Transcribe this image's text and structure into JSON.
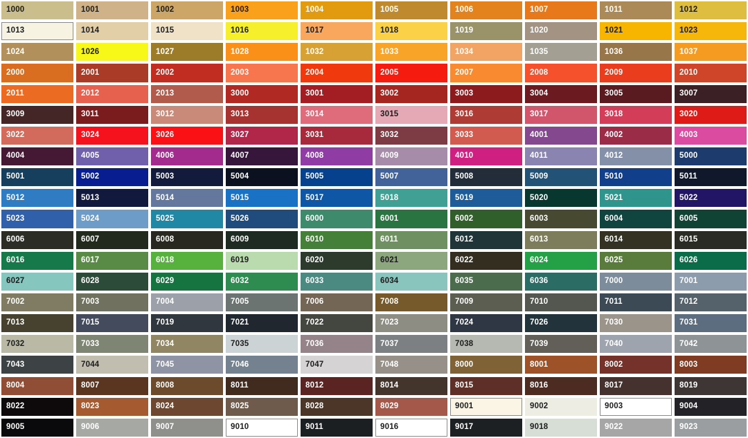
{
  "page": {
    "background": "#ffffff",
    "title": "RAL color chart"
  },
  "palette": {
    "label_dark": "#1d1d1d",
    "label_light": "#ffffff",
    "outline_color": "#8a8a8a",
    "swatches": [
      {
        "code": "1000",
        "color": "#C9BE8C",
        "text": "dark"
      },
      {
        "code": "1001",
        "color": "#CFB287",
        "text": "dark"
      },
      {
        "code": "1002",
        "color": "#CBA666",
        "text": "dark"
      },
      {
        "code": "1003",
        "color": "#F9A11B",
        "text": "dark"
      },
      {
        "code": "1004",
        "color": "#E29A0E",
        "text": "light"
      },
      {
        "code": "1005",
        "color": "#BE8A2D",
        "text": "light"
      },
      {
        "code": "1006",
        "color": "#E3831E",
        "text": "light"
      },
      {
        "code": "1007",
        "color": "#E8791B",
        "text": "light"
      },
      {
        "code": "1011",
        "color": "#AC8A58",
        "text": "light"
      },
      {
        "code": "1012",
        "color": "#DDBE3E",
        "text": "dark"
      },
      {
        "code": "1013",
        "color": "#F7F3E3",
        "text": "dark",
        "outlined": true
      },
      {
        "code": "1014",
        "color": "#E2CFA7",
        "text": "dark"
      },
      {
        "code": "1015",
        "color": "#EFE2C6",
        "text": "dark"
      },
      {
        "code": "1016",
        "color": "#F5F02B",
        "text": "dark"
      },
      {
        "code": "1017",
        "color": "#F9A75C",
        "text": "dark"
      },
      {
        "code": "1018",
        "color": "#FBD247",
        "text": "dark"
      },
      {
        "code": "1019",
        "color": "#9A9268",
        "text": "light"
      },
      {
        "code": "1020",
        "color": "#A39382",
        "text": "light"
      },
      {
        "code": "1021",
        "color": "#F7B500",
        "text": "dark"
      },
      {
        "code": "1023",
        "color": "#F7B60A",
        "text": "dark"
      },
      {
        "code": "1024",
        "color": "#B1905B",
        "text": "light"
      },
      {
        "code": "1026",
        "color": "#F7F718",
        "text": "dark"
      },
      {
        "code": "1027",
        "color": "#9C7C28",
        "text": "light"
      },
      {
        "code": "1028",
        "color": "#FB9019",
        "text": "light"
      },
      {
        "code": "1032",
        "color": "#D8A133",
        "text": "light"
      },
      {
        "code": "1033",
        "color": "#F8A428",
        "text": "light"
      },
      {
        "code": "1034",
        "color": "#F2A465",
        "text": "light"
      },
      {
        "code": "1035",
        "color": "#A39F93",
        "text": "light"
      },
      {
        "code": "1036",
        "color": "#97764A",
        "text": "light"
      },
      {
        "code": "1037",
        "color": "#F59B22",
        "text": "light"
      },
      {
        "code": "2000",
        "color": "#DA6E20",
        "text": "light"
      },
      {
        "code": "2001",
        "color": "#A93B27",
        "text": "light"
      },
      {
        "code": "2002",
        "color": "#C12D20",
        "text": "light"
      },
      {
        "code": "2003",
        "color": "#F8764D",
        "text": "light"
      },
      {
        "code": "2004",
        "color": "#F03A0E",
        "text": "light"
      },
      {
        "code": "2005",
        "color": "#F51C0F",
        "text": "light"
      },
      {
        "code": "2007",
        "color": "#FA8A2F",
        "text": "light"
      },
      {
        "code": "2008",
        "color": "#F4512C",
        "text": "light"
      },
      {
        "code": "2009",
        "color": "#EA3D1D",
        "text": "light"
      },
      {
        "code": "2010",
        "color": "#CE4529",
        "text": "light"
      },
      {
        "code": "2011",
        "color": "#EC6B22",
        "text": "light"
      },
      {
        "code": "2012",
        "color": "#E7614F",
        "text": "light"
      },
      {
        "code": "2013",
        "color": "#B05B4B",
        "text": "light"
      },
      {
        "code": "3000",
        "color": "#B02A23",
        "text": "light"
      },
      {
        "code": "3001",
        "color": "#A21E22",
        "text": "light"
      },
      {
        "code": "3002",
        "color": "#A52521",
        "text": "light"
      },
      {
        "code": "3003",
        "color": "#8C1B1E",
        "text": "light"
      },
      {
        "code": "3004",
        "color": "#6B1A20",
        "text": "light"
      },
      {
        "code": "3005",
        "color": "#591A20",
        "text": "light"
      },
      {
        "code": "3007",
        "color": "#3B2025",
        "text": "light"
      },
      {
        "code": "3009",
        "color": "#442627",
        "text": "light"
      },
      {
        "code": "3011",
        "color": "#7A1B1E",
        "text": "light"
      },
      {
        "code": "3012",
        "color": "#C98A79",
        "text": "light"
      },
      {
        "code": "3013",
        "color": "#A63330",
        "text": "light"
      },
      {
        "code": "3014",
        "color": "#DE6C7B",
        "text": "light"
      },
      {
        "code": "3015",
        "color": "#E5A9B5",
        "text": "dark"
      },
      {
        "code": "3016",
        "color": "#AE3B34",
        "text": "light"
      },
      {
        "code": "3017",
        "color": "#D2566B",
        "text": "light"
      },
      {
        "code": "3018",
        "color": "#D43D58",
        "text": "light"
      },
      {
        "code": "3020",
        "color": "#DE1B16",
        "text": "light"
      },
      {
        "code": "3022",
        "color": "#D26B5C",
        "text": "light"
      },
      {
        "code": "3024",
        "color": "#F6121C",
        "text": "light"
      },
      {
        "code": "3026",
        "color": "#F91116",
        "text": "light"
      },
      {
        "code": "3027",
        "color": "#B0274A",
        "text": "light"
      },
      {
        "code": "3031",
        "color": "#A62A3B",
        "text": "light"
      },
      {
        "code": "3032",
        "color": "#7D3B43",
        "text": "light"
      },
      {
        "code": "3033",
        "color": "#D05B4E",
        "text": "light"
      },
      {
        "code": "4001",
        "color": "#84488E",
        "text": "light"
      },
      {
        "code": "4002",
        "color": "#9A2C48",
        "text": "light"
      },
      {
        "code": "4003",
        "color": "#DB4BA0",
        "text": "light"
      },
      {
        "code": "4004",
        "color": "#451833",
        "text": "light"
      },
      {
        "code": "4005",
        "color": "#7060AC",
        "text": "light"
      },
      {
        "code": "4006",
        "color": "#A22B8D",
        "text": "light"
      },
      {
        "code": "4007",
        "color": "#36173B",
        "text": "light"
      },
      {
        "code": "4008",
        "color": "#8F3DA5",
        "text": "light"
      },
      {
        "code": "4009",
        "color": "#A68CA8",
        "text": "light"
      },
      {
        "code": "4010",
        "color": "#CF2082",
        "text": "light"
      },
      {
        "code": "4011",
        "color": "#8A85B0",
        "text": "light"
      },
      {
        "code": "4012",
        "color": "#8490A8",
        "text": "light"
      },
      {
        "code": "5000",
        "color": "#1E3B6E",
        "text": "light"
      },
      {
        "code": "5001",
        "color": "#153F5C",
        "text": "light"
      },
      {
        "code": "5002",
        "color": "#081E90",
        "text": "light"
      },
      {
        "code": "5003",
        "color": "#121B3C",
        "text": "light"
      },
      {
        "code": "5004",
        "color": "#0B111E",
        "text": "light"
      },
      {
        "code": "5005",
        "color": "#06418D",
        "text": "light"
      },
      {
        "code": "5007",
        "color": "#41639A",
        "text": "light"
      },
      {
        "code": "5008",
        "color": "#232D39",
        "text": "light"
      },
      {
        "code": "5009",
        "color": "#225276",
        "text": "light"
      },
      {
        "code": "5010",
        "color": "#123F8A",
        "text": "light"
      },
      {
        "code": "5011",
        "color": "#10192B",
        "text": "light"
      },
      {
        "code": "5012",
        "color": "#2F7CC3",
        "text": "light"
      },
      {
        "code": "5013",
        "color": "#11193D",
        "text": "light"
      },
      {
        "code": "5014",
        "color": "#64789E",
        "text": "light"
      },
      {
        "code": "5015",
        "color": "#1A72C4",
        "text": "light"
      },
      {
        "code": "5017",
        "color": "#0E56A6",
        "text": "light"
      },
      {
        "code": "5018",
        "color": "#3FA093",
        "text": "light"
      },
      {
        "code": "5019",
        "color": "#1D5B99",
        "text": "light"
      },
      {
        "code": "5020",
        "color": "#07372F",
        "text": "light"
      },
      {
        "code": "5021",
        "color": "#2F948B",
        "text": "light"
      },
      {
        "code": "5022",
        "color": "#221566",
        "text": "light"
      },
      {
        "code": "5023",
        "color": "#3060A9",
        "text": "light"
      },
      {
        "code": "5024",
        "color": "#6D9CC9",
        "text": "light"
      },
      {
        "code": "5025",
        "color": "#2087A5",
        "text": "light"
      },
      {
        "code": "5026",
        "color": "#1F4C7C",
        "text": "light"
      },
      {
        "code": "6000",
        "color": "#3D8A6C",
        "text": "light"
      },
      {
        "code": "6001",
        "color": "#2A7441",
        "text": "light"
      },
      {
        "code": "6002",
        "color": "#315F2B",
        "text": "light"
      },
      {
        "code": "6003",
        "color": "#474A31",
        "text": "light"
      },
      {
        "code": "6004",
        "color": "#10443F",
        "text": "light"
      },
      {
        "code": "6005",
        "color": "#114335",
        "text": "light"
      },
      {
        "code": "6006",
        "color": "#2C2E26",
        "text": "light"
      },
      {
        "code": "6007",
        "color": "#222A1D",
        "text": "light"
      },
      {
        "code": "6008",
        "color": "#282720",
        "text": "light"
      },
      {
        "code": "6009",
        "color": "#1E2B22",
        "text": "light"
      },
      {
        "code": "6010",
        "color": "#448037",
        "text": "light"
      },
      {
        "code": "6011",
        "color": "#6F9162",
        "text": "light"
      },
      {
        "code": "6012",
        "color": "#203537",
        "text": "light"
      },
      {
        "code": "6013",
        "color": "#7D7C5B",
        "text": "light"
      },
      {
        "code": "6014",
        "color": "#343323",
        "text": "light"
      },
      {
        "code": "6015",
        "color": "#292B24",
        "text": "light"
      },
      {
        "code": "6016",
        "color": "#16794A",
        "text": "light"
      },
      {
        "code": "6017",
        "color": "#598B46",
        "text": "light"
      },
      {
        "code": "6018",
        "color": "#57B13D",
        "text": "light"
      },
      {
        "code": "6019",
        "color": "#BADBAE",
        "text": "dark"
      },
      {
        "code": "6020",
        "color": "#2D3B2C",
        "text": "light"
      },
      {
        "code": "6021",
        "color": "#8CA67E",
        "text": "dark"
      },
      {
        "code": "6022",
        "color": "#332E20",
        "text": "light"
      },
      {
        "code": "6024",
        "color": "#24A147",
        "text": "light"
      },
      {
        "code": "6025",
        "color": "#597C3C",
        "text": "light"
      },
      {
        "code": "6026",
        "color": "#0B6C49",
        "text": "light"
      },
      {
        "code": "6027",
        "color": "#85C7BF",
        "text": "dark"
      },
      {
        "code": "6028",
        "color": "#2D4B39",
        "text": "light"
      },
      {
        "code": "6029",
        "color": "#167440",
        "text": "light"
      },
      {
        "code": "6032",
        "color": "#2F8C50",
        "text": "light"
      },
      {
        "code": "6033",
        "color": "#4A8A81",
        "text": "light"
      },
      {
        "code": "6034",
        "color": "#89C4BD",
        "text": "dark"
      },
      {
        "code": "6035",
        "color": "#4B6C4D",
        "text": "light"
      },
      {
        "code": "6036",
        "color": "#2B6C64",
        "text": "light"
      },
      {
        "code": "7000",
        "color": "#7D8C9A",
        "text": "light"
      },
      {
        "code": "7001",
        "color": "#8D9CAC",
        "text": "light"
      },
      {
        "code": "7002",
        "color": "#807C64",
        "text": "light"
      },
      {
        "code": "7003",
        "color": "#70725F",
        "text": "light"
      },
      {
        "code": "7004",
        "color": "#9CA1A9",
        "text": "light"
      },
      {
        "code": "7005",
        "color": "#6C7471",
        "text": "light"
      },
      {
        "code": "7006",
        "color": "#746655",
        "text": "light"
      },
      {
        "code": "7008",
        "color": "#765A2B",
        "text": "light"
      },
      {
        "code": "7009",
        "color": "#5B5E51",
        "text": "light"
      },
      {
        "code": "7010",
        "color": "#545750",
        "text": "light"
      },
      {
        "code": "7011",
        "color": "#3C4A56",
        "text": "light"
      },
      {
        "code": "7012",
        "color": "#56626B",
        "text": "light"
      },
      {
        "code": "7013",
        "color": "#46422F",
        "text": "light"
      },
      {
        "code": "7015",
        "color": "#434B5C",
        "text": "light"
      },
      {
        "code": "7019",
        "color": "#31373E",
        "text": "light"
      },
      {
        "code": "7021",
        "color": "#20272E",
        "text": "light"
      },
      {
        "code": "7022",
        "color": "#444640",
        "text": "light"
      },
      {
        "code": "7023",
        "color": "#8D8D83",
        "text": "light"
      },
      {
        "code": "7024",
        "color": "#2F3744",
        "text": "light"
      },
      {
        "code": "7026",
        "color": "#22333C",
        "text": "light"
      },
      {
        "code": "7030",
        "color": "#9A948A",
        "text": "light"
      },
      {
        "code": "7031",
        "color": "#5B6D7F",
        "text": "light"
      },
      {
        "code": "7032",
        "color": "#B9B9A6",
        "text": "dark"
      },
      {
        "code": "7033",
        "color": "#7E8572",
        "text": "light"
      },
      {
        "code": "7034",
        "color": "#908663",
        "text": "light"
      },
      {
        "code": "7035",
        "color": "#CCD3D5",
        "text": "dark"
      },
      {
        "code": "7036",
        "color": "#948389",
        "text": "light"
      },
      {
        "code": "7037",
        "color": "#7C8083",
        "text": "light"
      },
      {
        "code": "7038",
        "color": "#B5B9B1",
        "text": "dark"
      },
      {
        "code": "7039",
        "color": "#625F59",
        "text": "light"
      },
      {
        "code": "7040",
        "color": "#9EA4AE",
        "text": "light"
      },
      {
        "code": "7042",
        "color": "#8E9396",
        "text": "light"
      },
      {
        "code": "7043",
        "color": "#3D4345",
        "text": "light"
      },
      {
        "code": "7044",
        "color": "#C1BEB0",
        "text": "dark"
      },
      {
        "code": "7045",
        "color": "#8E94A4",
        "text": "light"
      },
      {
        "code": "7046",
        "color": "#74818E",
        "text": "light"
      },
      {
        "code": "7047",
        "color": "#D6D3D5",
        "text": "dark"
      },
      {
        "code": "7048",
        "color": "#979088",
        "text": "light"
      },
      {
        "code": "8000",
        "color": "#7F6336",
        "text": "light"
      },
      {
        "code": "8001",
        "color": "#9D5327",
        "text": "light"
      },
      {
        "code": "8002",
        "color": "#75322B",
        "text": "light"
      },
      {
        "code": "8003",
        "color": "#7F3C23",
        "text": "light"
      },
      {
        "code": "8004",
        "color": "#8F4E35",
        "text": "light"
      },
      {
        "code": "8007",
        "color": "#5A3620",
        "text": "light"
      },
      {
        "code": "8008",
        "color": "#6C4B2C",
        "text": "light"
      },
      {
        "code": "8011",
        "color": "#402B1E",
        "text": "light"
      },
      {
        "code": "8012",
        "color": "#5A2422",
        "text": "light"
      },
      {
        "code": "8014",
        "color": "#44352C",
        "text": "light"
      },
      {
        "code": "8015",
        "color": "#5E2F26",
        "text": "light"
      },
      {
        "code": "8016",
        "color": "#4C2B20",
        "text": "light"
      },
      {
        "code": "8017",
        "color": "#45322E",
        "text": "light"
      },
      {
        "code": "8019",
        "color": "#3D3635",
        "text": "light"
      },
      {
        "code": "8022",
        "color": "#0E0A0B",
        "text": "light"
      },
      {
        "code": "8023",
        "color": "#A55A2F",
        "text": "light"
      },
      {
        "code": "8024",
        "color": "#6D4730",
        "text": "light"
      },
      {
        "code": "8025",
        "color": "#6F5B4C",
        "text": "light"
      },
      {
        "code": "8028",
        "color": "#4B3627",
        "text": "light"
      },
      {
        "code": "8029",
        "color": "#A3584A",
        "text": "light"
      },
      {
        "code": "9001",
        "color": "#FAF5E4",
        "text": "dark",
        "outlined": true
      },
      {
        "code": "9002",
        "color": "#EEEDE3",
        "text": "dark"
      },
      {
        "code": "9003",
        "color": "#FFFFFF",
        "text": "dark",
        "outlined": true
      },
      {
        "code": "9004",
        "color": "#222227",
        "text": "light"
      },
      {
        "code": "9005",
        "color": "#0A0A0D",
        "text": "light"
      },
      {
        "code": "9006",
        "color": "#A5A8A3",
        "text": "light"
      },
      {
        "code": "9007",
        "color": "#8F8F8C",
        "text": "light"
      },
      {
        "code": "9010",
        "color": "#FFFFFF",
        "text": "dark",
        "outlined": true
      },
      {
        "code": "9011",
        "color": "#1C1F22",
        "text": "light"
      },
      {
        "code": "9016",
        "color": "#FFFFFF",
        "text": "dark",
        "outlined": true
      },
      {
        "code": "9017",
        "color": "#1D2023",
        "text": "light"
      },
      {
        "code": "9018",
        "color": "#D7DED5",
        "text": "dark"
      },
      {
        "code": "9022",
        "color": "#A6A6A6",
        "text": "light"
      },
      {
        "code": "9023",
        "color": "#9A9EA1",
        "text": "light"
      }
    ]
  }
}
